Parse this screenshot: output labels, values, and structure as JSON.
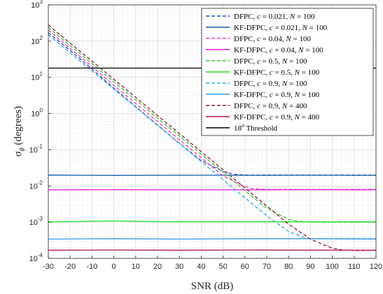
{
  "chart_data": {
    "type": "line",
    "xlabel": "SNR (dB)",
    "ylabel_main": "σ",
    "ylabel_sub": "ϕ",
    "ylabel_rest": " (degrees)",
    "xlim": [
      -30,
      120
    ],
    "ylim": [
      0.0001,
      1000
    ],
    "yscale": "log",
    "grid": true,
    "legend_position": "top-right",
    "x_ticks": [
      -30,
      -20,
      -10,
      0,
      10,
      20,
      30,
      40,
      50,
      60,
      70,
      80,
      90,
      100,
      110,
      120
    ],
    "y_ticks": [
      {
        "value": 0.0001,
        "base": "10",
        "exp": "-4"
      },
      {
        "value": 0.001,
        "base": "10",
        "exp": "-3"
      },
      {
        "value": 0.01,
        "base": "10",
        "exp": "-2"
      },
      {
        "value": 0.1,
        "base": "10",
        "exp": "-1"
      },
      {
        "value": 1,
        "base": "10",
        "exp": "0"
      },
      {
        "value": 10,
        "base": "10",
        "exp": "1"
      },
      {
        "value": 100,
        "base": "10",
        "exp": "2"
      },
      {
        "value": 1000,
        "base": "10",
        "exp": "3"
      }
    ],
    "series": [
      {
        "name": "DFPC, c = 0.021, N = 100",
        "legend": {
          "method": "DFPC",
          "c": "0.021",
          "N": "100"
        },
        "color": "#1f4fbf",
        "dash": true,
        "x": [
          -30,
          -20,
          -10,
          0,
          10,
          20,
          30,
          40,
          50,
          55,
          60,
          70,
          80,
          90,
          100,
          110,
          120
        ],
        "y": [
          170,
          55,
          17,
          5,
          1.55,
          0.48,
          0.15,
          0.05,
          0.025,
          0.021,
          0.02,
          0.02,
          0.02,
          0.02,
          0.02,
          0.02,
          0.02
        ]
      },
      {
        "name": "KF-DFPC, c = 0.021, N = 100",
        "legend": {
          "method": "KF-DFPC",
          "c": "0.021",
          "N": "100"
        },
        "color": "#0f5aa8",
        "dash": false,
        "x": [
          -30,
          0,
          30,
          60,
          90,
          120
        ],
        "y": [
          0.02,
          0.0195,
          0.0198,
          0.0197,
          0.0198,
          0.0197
        ]
      },
      {
        "name": "DFPC, c = 0.04, N = 100",
        "legend": {
          "method": "DFPC",
          "c": "0.04",
          "N": "100"
        },
        "color": "#ff33cc",
        "dash": true,
        "x": [
          -30,
          -20,
          -10,
          0,
          10,
          20,
          30,
          40,
          50,
          60,
          63,
          70,
          80,
          90,
          100,
          110,
          120
        ],
        "y": [
          200,
          63,
          20,
          6,
          1.9,
          0.6,
          0.19,
          0.06,
          0.019,
          0.0095,
          0.0085,
          0.008,
          0.008,
          0.008,
          0.008,
          0.008,
          0.008
        ]
      },
      {
        "name": "KF-DFPC, c = 0.04, N = 100",
        "legend": {
          "method": "KF-DFPC",
          "c": "0.04",
          "N": "100"
        },
        "color": "#e619d9",
        "dash": false,
        "x": [
          -30,
          0,
          30,
          60,
          90,
          120
        ],
        "y": [
          0.0078,
          0.0079,
          0.0078,
          0.0078,
          0.0079,
          0.0078
        ]
      },
      {
        "name": "DFPC, c = 0.5, N = 100",
        "legend": {
          "method": "DFPC",
          "c": "0.5",
          "N": "100"
        },
        "color": "#2ecc2e",
        "dash": true,
        "x": [
          -30,
          -20,
          -10,
          0,
          10,
          20,
          30,
          40,
          50,
          60,
          70,
          80,
          85,
          90,
          100,
          110,
          120
        ],
        "y": [
          240,
          75,
          24,
          7.5,
          2.4,
          0.75,
          0.24,
          0.075,
          0.024,
          0.0075,
          0.0024,
          0.0012,
          0.00105,
          0.001,
          0.001,
          0.001,
          0.001
        ]
      },
      {
        "name": "KF-DFPC, c = 0.5, N = 100",
        "legend": {
          "method": "KF-DFPC",
          "c": "0.5",
          "N": "100"
        },
        "color": "#22dd22",
        "dash": false,
        "x": [
          -30,
          0,
          30,
          60,
          90,
          120
        ],
        "y": [
          0.00102,
          0.00108,
          0.00102,
          0.00103,
          0.00102,
          0.00102
        ]
      },
      {
        "name": "DFPC, c = 0.9, N = 100",
        "legend": {
          "method": "DFPC",
          "c": "0.9",
          "N": "100"
        },
        "color": "#33aadd",
        "dash": true,
        "x": [
          -30,
          -20,
          -10,
          0,
          10,
          20,
          30,
          40,
          50,
          60,
          70,
          80,
          88,
          90,
          100,
          110,
          120
        ],
        "y": [
          150,
          47,
          15,
          4.7,
          1.5,
          0.47,
          0.15,
          0.047,
          0.015,
          0.0047,
          0.0015,
          0.00055,
          0.00036,
          0.00035,
          0.00035,
          0.00035,
          0.00035
        ]
      },
      {
        "name": "KF-DFPC, c = 0.9, N = 100",
        "legend": {
          "method": "KF-DFPC",
          "c": "0.9",
          "N": "100"
        },
        "color": "#3399ee",
        "dash": false,
        "x": [
          -30,
          0,
          30,
          60,
          90,
          120
        ],
        "y": [
          0.00034,
          0.00035,
          0.00034,
          0.00035,
          0.00035,
          0.00034
        ]
      },
      {
        "name": "DFPC, c = 0.9, N = 400",
        "legend": {
          "method": "DFPC",
          "c": "0.9",
          "N": "400"
        },
        "color": "#991a33",
        "dash": true,
        "x": [
          -30,
          -20,
          -10,
          0,
          10,
          20,
          30,
          40,
          50,
          60,
          70,
          80,
          90,
          100,
          105,
          110,
          115,
          120
        ],
        "y": [
          280,
          88,
          28,
          8.8,
          2.8,
          0.88,
          0.28,
          0.088,
          0.028,
          0.0088,
          0.0028,
          0.00088,
          0.00034,
          0.00019,
          0.00017,
          0.000165,
          0.000165,
          0.000168
        ]
      },
      {
        "name": "KF-DFPC, c = 0.9, N = 400",
        "legend": {
          "method": "KF-DFPC",
          "c": "0.9",
          "N": "400"
        },
        "color": "#b0124f",
        "dash": false,
        "x": [
          -30,
          0,
          30,
          60,
          90,
          120
        ],
        "y": [
          0.000168,
          0.00017,
          0.000168,
          0.00017,
          0.000169,
          0.000168
        ]
      },
      {
        "name": "18° Threshold",
        "legend": {
          "value": "18",
          "sup": "o",
          "rest": " Threshold"
        },
        "color": "#000000",
        "dash": false,
        "x": [
          -30,
          120
        ],
        "y": [
          18,
          18
        ]
      }
    ]
  }
}
